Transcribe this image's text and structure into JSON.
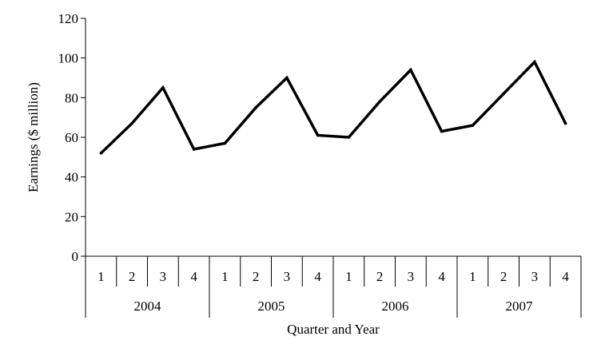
{
  "chart_data": {
    "type": "line",
    "title": "",
    "xlabel": "Quarter and Year",
    "ylabel": "Earnings ($ million)",
    "ylim": [
      0,
      120
    ],
    "yticks": [
      0,
      20,
      40,
      60,
      80,
      100,
      120
    ],
    "grid": false,
    "legend": "none",
    "line_color": "#000000",
    "years": [
      "2004",
      "2005",
      "2006",
      "2007"
    ],
    "quarters": [
      "1",
      "2",
      "3",
      "4"
    ],
    "categories": [
      "2004 Q1",
      "2004 Q2",
      "2004 Q3",
      "2004 Q4",
      "2005 Q1",
      "2005 Q2",
      "2005 Q3",
      "2005 Q4",
      "2006 Q1",
      "2006 Q2",
      "2006 Q3",
      "2006 Q4",
      "2007 Q1",
      "2007 Q2",
      "2007 Q3",
      "2007 Q4"
    ],
    "values": [
      52,
      67,
      85,
      54,
      57,
      75,
      90,
      61,
      60,
      78,
      94,
      63,
      66,
      82,
      98,
      67
    ]
  }
}
